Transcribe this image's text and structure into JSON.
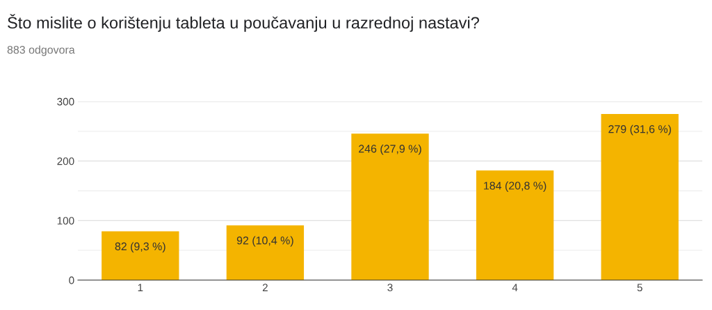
{
  "chart_data": {
    "type": "bar",
    "title": "Što mislite o korištenju tableta u poučavanju u razrednoj nastavi?",
    "subtitle": "883 odgovora",
    "categories": [
      "1",
      "2",
      "3",
      "4",
      "5"
    ],
    "values": [
      82,
      92,
      246,
      184,
      279
    ],
    "value_labels": [
      "82 (9,3 %)",
      "92 (10,4 %)",
      "246 (27,9 %)",
      "184 (20,8 %)",
      "279 (31,6 %)"
    ],
    "color": "#f4b400",
    "ylim": [
      0,
      300
    ],
    "yticks": [
      0,
      {
        "value": 50,
        "label": null
      },
      100,
      {
        "value": 150,
        "label": null
      },
      200,
      {
        "value": 250,
        "label": null
      },
      300
    ],
    "grid": "y",
    "legend": false
  }
}
